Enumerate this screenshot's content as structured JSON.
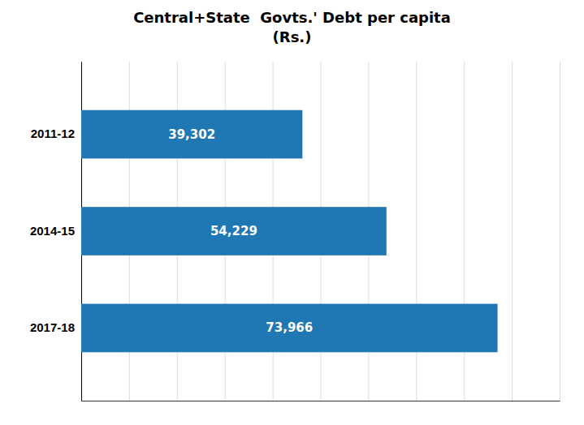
{
  "chart_data": {
    "type": "bar",
    "orientation": "horizontal",
    "title": "Central+State  Govts.' Debt per capita\n(Rs.)",
    "categories": [
      "2017-18",
      "2014-15",
      "2011-12"
    ],
    "values": [
      73966,
      54229,
      39302
    ],
    "value_labels": [
      "73,966",
      "54,229",
      "39,302"
    ],
    "xlim": [
      0,
      85000
    ],
    "xticks": [
      0,
      8500,
      17000,
      25500,
      34000,
      42500,
      51000,
      59500,
      68000,
      76500,
      85000
    ],
    "grid": true,
    "data_labels": true,
    "tick_labels": "y"
  }
}
